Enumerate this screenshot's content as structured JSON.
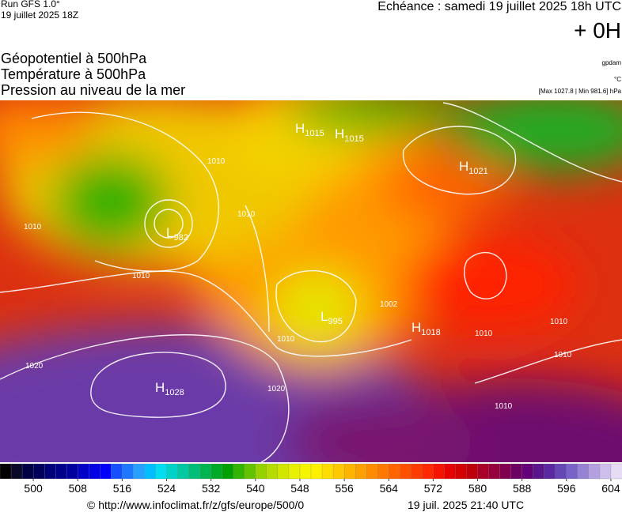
{
  "header": {
    "run": "Run GFS 1.0°",
    "run_date": "19 juillet 2025 18Z",
    "valid": "Echéance : samedi 19 juillet 2025 18h UTC",
    "lead": "+ 0H"
  },
  "fields": [
    "Géopotentiel à 500hPa",
    "Température à 500hPa",
    "Pression au niveau de la mer"
  ],
  "units": [
    "gpdam",
    "°C",
    "[Max 1027.8 | Min 981.6] hPa"
  ],
  "centers": [
    {
      "type": "H",
      "value": 1015
    },
    {
      "type": "H",
      "value": 1015
    },
    {
      "type": "H",
      "value": 1021
    },
    {
      "type": "L",
      "value": 982
    },
    {
      "type": "L",
      "value": 995
    },
    {
      "type": "H",
      "value": 1018
    },
    {
      "type": "H",
      "value": 1028
    }
  ],
  "isobar_labels": [
    1010,
    1010,
    1010,
    1010,
    1020,
    1020,
    1010,
    1002,
    1010,
    1010,
    1010,
    1010
  ],
  "colorbar": {
    "range": [
      494,
      606
    ],
    "ticks": [
      500,
      508,
      516,
      524,
      532,
      540,
      548,
      556,
      564,
      572,
      580,
      588,
      596,
      604
    ],
    "colors": [
      "#000000",
      "#0a0a28",
      "#000046",
      "#00005a",
      "#000078",
      "#00008c",
      "#0000a0",
      "#0000c8",
      "#0000e6",
      "#0000ff",
      "#1450ff",
      "#1e78ff",
      "#28a0ff",
      "#00beff",
      "#00dcf0",
      "#00d2c8",
      "#00c8a0",
      "#00be78",
      "#00b450",
      "#00aa28",
      "#00a000",
      "#32b400",
      "#64c300",
      "#96d200",
      "#b4dc00",
      "#d2e600",
      "#e6f000",
      "#f5f500",
      "#fff000",
      "#ffdc00",
      "#ffc800",
      "#ffb400",
      "#ffa000",
      "#ff8c00",
      "#ff7800",
      "#ff6400",
      "#ff5000",
      "#ff3c00",
      "#ff2800",
      "#f51400",
      "#e60000",
      "#d20000",
      "#be000a",
      "#aa0028",
      "#96003c",
      "#820050",
      "#6e0064",
      "#640078",
      "#5a148c",
      "#5a28a0",
      "#6446b4",
      "#7864c8",
      "#9682d2",
      "#b4a0e1",
      "#cdbeeb",
      "#e6dcf5"
    ]
  },
  "footer": {
    "source": "© http://www.infoclimat.fr/z/gfs/europe/500/0",
    "generated": "19 juil. 2025 21:40 UTC"
  }
}
